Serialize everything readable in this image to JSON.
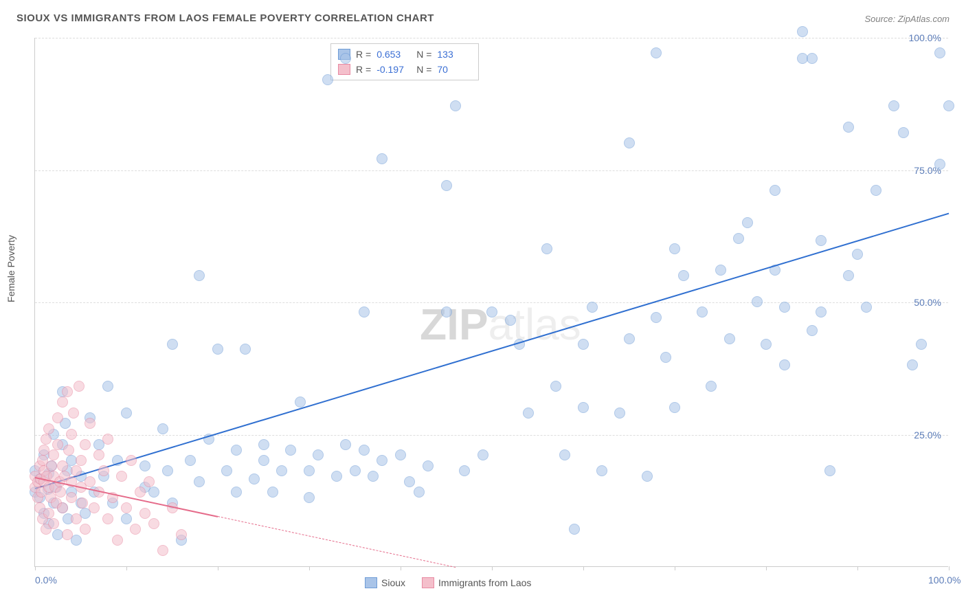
{
  "title": "SIOUX VS IMMIGRANTS FROM LAOS FEMALE POVERTY CORRELATION CHART",
  "source": "Source: ZipAtlas.com",
  "y_axis_label": "Female Poverty",
  "watermark": {
    "bold": "ZIP",
    "light": "atlas"
  },
  "chart": {
    "type": "scatter",
    "xlim": [
      0,
      100
    ],
    "ylim": [
      0,
      100
    ],
    "x_ticks": [
      0,
      10,
      20,
      30,
      40,
      50,
      60,
      70,
      80,
      90,
      100
    ],
    "x_tick_labels": {
      "0": "0.0%",
      "100": "100.0%"
    },
    "y_ticks": [
      25,
      50,
      75,
      100
    ],
    "y_tick_labels": {
      "25": "25.0%",
      "50": "50.0%",
      "75": "75.0%",
      "100": "100.0%"
    },
    "background_color": "#ffffff",
    "grid_color": "#dddddd",
    "axis_color": "#cccccc",
    "label_color": "#5b7cb8",
    "marker_radius": 8,
    "marker_opacity": 0.55,
    "series": [
      {
        "name": "Sioux",
        "color_fill": "#a9c4e8",
        "color_stroke": "#6f9cd6",
        "trend_color": "#2f6fd0",
        "trend": {
          "x1": 0,
          "y1": 15,
          "x2": 100,
          "y2": 67,
          "solid_until_x": 100
        },
        "stats": {
          "R": "0.653",
          "N": "133"
        },
        "points": [
          [
            0,
            18
          ],
          [
            0,
            14
          ],
          [
            0.5,
            16.5
          ],
          [
            0.5,
            13
          ],
          [
            1,
            21
          ],
          [
            1,
            10
          ],
          [
            1.4,
            14.5
          ],
          [
            1.5,
            17.5
          ],
          [
            1.5,
            8
          ],
          [
            1.8,
            19
          ],
          [
            2,
            25
          ],
          [
            2,
            12
          ],
          [
            2.3,
            15
          ],
          [
            2.5,
            6
          ],
          [
            3,
            11
          ],
          [
            3,
            23
          ],
          [
            3,
            33
          ],
          [
            3.3,
            27
          ],
          [
            3.5,
            18
          ],
          [
            3.6,
            9
          ],
          [
            4,
            14
          ],
          [
            4,
            20
          ],
          [
            4.5,
            5
          ],
          [
            5,
            12
          ],
          [
            5,
            17
          ],
          [
            5.5,
            10
          ],
          [
            6,
            28
          ],
          [
            6.5,
            14
          ],
          [
            7,
            23
          ],
          [
            7.5,
            17
          ],
          [
            8,
            34
          ],
          [
            8.5,
            12
          ],
          [
            9,
            20
          ],
          [
            10,
            9
          ],
          [
            10,
            29
          ],
          [
            12,
            15
          ],
          [
            12,
            19
          ],
          [
            13,
            14
          ],
          [
            14,
            26
          ],
          [
            14.5,
            18
          ],
          [
            15,
            12
          ],
          [
            15,
            42
          ],
          [
            16,
            5
          ],
          [
            17,
            20
          ],
          [
            18,
            16
          ],
          [
            18,
            55
          ],
          [
            19,
            24
          ],
          [
            20,
            41
          ],
          [
            21,
            18
          ],
          [
            22,
            14
          ],
          [
            22,
            22
          ],
          [
            23,
            41
          ],
          [
            24,
            16.5
          ],
          [
            25,
            23
          ],
          [
            25,
            20
          ],
          [
            26,
            14
          ],
          [
            27,
            18
          ],
          [
            28,
            22
          ],
          [
            29,
            31
          ],
          [
            30,
            18
          ],
          [
            30,
            13
          ],
          [
            31,
            21
          ],
          [
            32,
            92
          ],
          [
            33,
            17
          ],
          [
            34,
            96
          ],
          [
            34,
            23
          ],
          [
            35,
            18
          ],
          [
            36,
            22
          ],
          [
            36,
            48
          ],
          [
            37,
            17
          ],
          [
            38,
            20
          ],
          [
            38,
            77
          ],
          [
            40,
            21
          ],
          [
            41,
            16
          ],
          [
            42,
            14
          ],
          [
            43,
            19
          ],
          [
            45,
            72
          ],
          [
            45,
            48
          ],
          [
            46,
            87
          ],
          [
            47,
            18
          ],
          [
            49,
            21
          ],
          [
            50,
            48
          ],
          [
            52,
            46.5
          ],
          [
            53,
            42
          ],
          [
            54,
            29
          ],
          [
            56,
            60
          ],
          [
            57,
            34
          ],
          [
            58,
            21
          ],
          [
            59,
            7
          ],
          [
            60,
            42
          ],
          [
            60,
            30
          ],
          [
            61,
            49
          ],
          [
            62,
            18
          ],
          [
            64,
            29
          ],
          [
            65,
            43
          ],
          [
            65,
            80
          ],
          [
            67,
            17
          ],
          [
            68,
            47
          ],
          [
            68,
            97
          ],
          [
            69,
            39.5
          ],
          [
            70,
            60
          ],
          [
            70,
            30
          ],
          [
            71,
            55
          ],
          [
            73,
            48
          ],
          [
            74,
            34
          ],
          [
            75,
            56
          ],
          [
            76,
            43
          ],
          [
            77,
            62
          ],
          [
            78,
            65
          ],
          [
            79,
            50
          ],
          [
            80,
            42
          ],
          [
            81,
            56
          ],
          [
            81,
            71
          ],
          [
            82,
            38
          ],
          [
            82,
            49
          ],
          [
            84,
            101
          ],
          [
            84,
            96
          ],
          [
            85,
            44.5
          ],
          [
            85,
            96
          ],
          [
            86,
            48
          ],
          [
            86,
            61.5
          ],
          [
            87,
            18
          ],
          [
            89,
            55
          ],
          [
            89,
            83
          ],
          [
            90,
            59
          ],
          [
            91,
            49
          ],
          [
            92,
            71
          ],
          [
            94,
            87
          ],
          [
            95,
            82
          ],
          [
            96,
            38
          ],
          [
            97,
            42
          ],
          [
            99,
            97
          ],
          [
            99,
            76
          ],
          [
            100,
            87
          ]
        ]
      },
      {
        "name": "Immigrants from Laos",
        "color_fill": "#f4bfcb",
        "color_stroke": "#e88aa2",
        "trend_color": "#e56b8a",
        "trend": {
          "x1": 0,
          "y1": 17,
          "x2": 46,
          "y2": 0,
          "solid_until_x": 20
        },
        "stats": {
          "R": "-0.197",
          "N": "70"
        },
        "points": [
          [
            0,
            15
          ],
          [
            0,
            17
          ],
          [
            0.3,
            16
          ],
          [
            0.3,
            13
          ],
          [
            0.5,
            19
          ],
          [
            0.5,
            11
          ],
          [
            0.6,
            16.5
          ],
          [
            0.7,
            14
          ],
          [
            0.8,
            20
          ],
          [
            0.8,
            9
          ],
          [
            1,
            22
          ],
          [
            1,
            16
          ],
          [
            1,
            18
          ],
          [
            1.2,
            24
          ],
          [
            1.2,
            7
          ],
          [
            1.3,
            17
          ],
          [
            1.5,
            15
          ],
          [
            1.5,
            26
          ],
          [
            1.5,
            10
          ],
          [
            1.7,
            13
          ],
          [
            1.8,
            19
          ],
          [
            2,
            17
          ],
          [
            2,
            21
          ],
          [
            2,
            8
          ],
          [
            2.2,
            15
          ],
          [
            2.3,
            12
          ],
          [
            2.5,
            28
          ],
          [
            2.5,
            23
          ],
          [
            2.7,
            16
          ],
          [
            2.8,
            14
          ],
          [
            3,
            19
          ],
          [
            3,
            31
          ],
          [
            3,
            11
          ],
          [
            3.2,
            17
          ],
          [
            3.5,
            33
          ],
          [
            3.5,
            6
          ],
          [
            3.7,
            22
          ],
          [
            4,
            16
          ],
          [
            4,
            25
          ],
          [
            4,
            13
          ],
          [
            4.2,
            29
          ],
          [
            4.5,
            18
          ],
          [
            4.5,
            9
          ],
          [
            4.8,
            34
          ],
          [
            5,
            15
          ],
          [
            5,
            20
          ],
          [
            5.2,
            12
          ],
          [
            5.5,
            23
          ],
          [
            5.5,
            7
          ],
          [
            6,
            16
          ],
          [
            6,
            27
          ],
          [
            6.5,
            11
          ],
          [
            7,
            14
          ],
          [
            7,
            21
          ],
          [
            7.5,
            18
          ],
          [
            8,
            24
          ],
          [
            8,
            9
          ],
          [
            8.5,
            13
          ],
          [
            9,
            5
          ],
          [
            9.5,
            17
          ],
          [
            10,
            11
          ],
          [
            10.5,
            20
          ],
          [
            11,
            7
          ],
          [
            11.5,
            14
          ],
          [
            12,
            10
          ],
          [
            12.5,
            16
          ],
          [
            13,
            8
          ],
          [
            14,
            3
          ],
          [
            15,
            11
          ],
          [
            16,
            6
          ]
        ]
      }
    ]
  },
  "legend": {
    "series1": "Sioux",
    "series2": "Immigrants from Laos"
  },
  "stats_box": {
    "r_label": "R =",
    "n_label": "N ="
  }
}
